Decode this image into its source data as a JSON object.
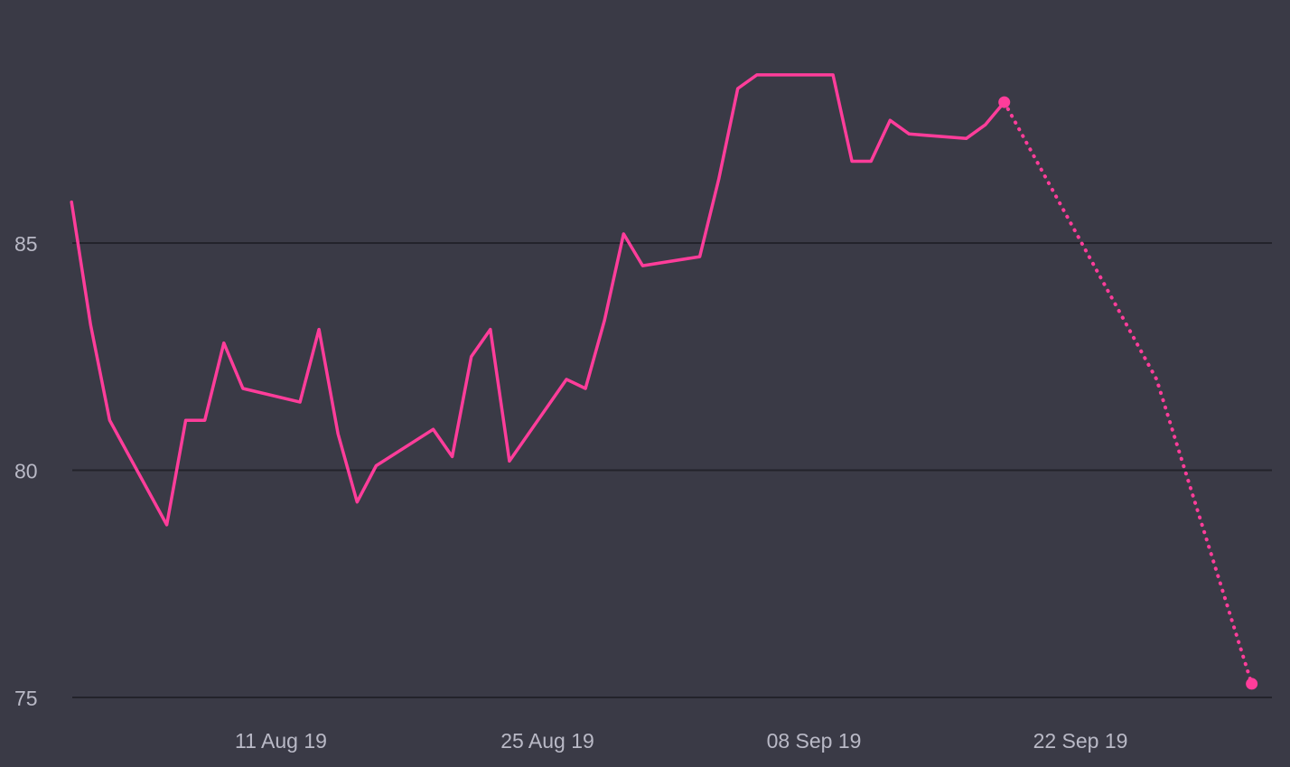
{
  "chart_data": {
    "type": "line",
    "title": "",
    "xlabel": "",
    "ylabel": "",
    "colors": {
      "background": "#3a3a46",
      "series": "#ff3d9a",
      "grid": "#23232b",
      "text": "#b9b9c6"
    },
    "ylim": [
      74.5,
      88.5
    ],
    "y_ticks": [
      75,
      80,
      85
    ],
    "y_tick_labels": [
      "75",
      "80",
      "85"
    ],
    "xlim": [
      "2019-07-31",
      "2019-10-01"
    ],
    "x_ticks": [
      "2019-08-11",
      "2019-08-25",
      "2019-09-08",
      "2019-09-22"
    ],
    "x_tick_labels": [
      "11 Aug 19",
      "25 Aug 19",
      "08 Sep 19",
      "22 Sep 19"
    ],
    "grid": "horizontal",
    "legend": "none",
    "series": [
      {
        "style": "solid",
        "x": [
          "2019-07-31",
          "2019-08-01",
          "2019-08-02",
          "2019-08-05",
          "2019-08-06",
          "2019-08-07",
          "2019-08-08",
          "2019-08-09",
          "2019-08-12",
          "2019-08-13",
          "2019-08-14",
          "2019-08-15",
          "2019-08-16",
          "2019-08-19",
          "2019-08-20",
          "2019-08-21",
          "2019-08-22",
          "2019-08-23",
          "2019-08-26",
          "2019-08-27",
          "2019-08-28",
          "2019-08-29",
          "2019-08-30",
          "2019-09-02",
          "2019-09-03",
          "2019-09-04",
          "2019-09-05",
          "2019-09-06",
          "2019-09-09",
          "2019-09-10",
          "2019-09-11",
          "2019-09-12",
          "2019-09-13",
          "2019-09-16",
          "2019-09-17",
          "2019-09-18"
        ],
        "y": [
          85.9,
          83.2,
          81.1,
          78.8,
          81.1,
          81.1,
          82.8,
          81.8,
          81.5,
          83.1,
          80.8,
          79.3,
          80.1,
          80.9,
          80.3,
          82.5,
          83.1,
          80.2,
          82.0,
          81.8,
          83.3,
          85.2,
          84.5,
          84.7,
          86.4,
          88.4,
          88.7,
          88.7,
          88.7,
          86.8,
          86.8,
          87.7,
          87.4,
          87.3,
          87.6,
          88.1
        ]
      },
      {
        "style": "dotted",
        "x": [
          "2019-09-18",
          "2019-09-26",
          "2019-10-01"
        ],
        "y": [
          88.1,
          82.0,
          75.3
        ]
      }
    ]
  }
}
